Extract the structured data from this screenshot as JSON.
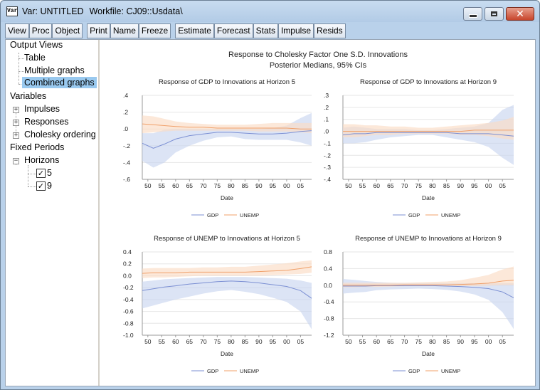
{
  "window": {
    "icon_text": "Var",
    "title": "Var: UNTITLED",
    "workfile": "Workfile: CJ09::Usdata\\"
  },
  "toolbar": {
    "group1": [
      "View",
      "Proc",
      "Object"
    ],
    "group2": [
      "Print",
      "Name",
      "Freeze"
    ],
    "group3": [
      "Estimate",
      "Forecast",
      "Stats",
      "Impulse",
      "Resids"
    ]
  },
  "tree": {
    "output_views": "Output Views",
    "table": "Table",
    "multiple_graphs": "Multiple graphs",
    "combined_graphs": "Combined graphs",
    "variables": "Variables",
    "impulses": "Impulses",
    "responses": "Responses",
    "cholesky": "Cholesky ordering",
    "fixed_periods": "Fixed Periods",
    "horizons": "Horizons",
    "h5": "5",
    "h9": "9"
  },
  "graph": {
    "title": "Response to Cholesky Factor One S.D. Innovations",
    "subtitle": "Posterior Medians, 95% CIs"
  },
  "colors": {
    "gdp": "#7b8fd3",
    "unemp": "#f0a06a",
    "gdp_band": "#c9d5ef",
    "unemp_band": "#fadcc4"
  },
  "chart_data": [
    {
      "type": "line",
      "title": "Response of GDP to Innovations at Horizon 5",
      "xlabel": "Date",
      "x_ticks": [
        "50",
        "55",
        "60",
        "65",
        "70",
        "75",
        "80",
        "85",
        "90",
        "95",
        "00",
        "05"
      ],
      "x_range": [
        1948,
        2009
      ],
      "ylim": [
        -0.6,
        0.4
      ],
      "y_ticks": [
        ".4",
        ".2",
        ".0",
        "-.2",
        "-.4",
        "-.6"
      ],
      "y_tick_values": [
        0.4,
        0.2,
        0.0,
        -0.2,
        -0.4,
        -0.6
      ],
      "legend": [
        "GDP",
        "UNEMP"
      ],
      "series": [
        {
          "name": "GDP",
          "x": [
            1948,
            1952,
            1956,
            1960,
            1965,
            1970,
            1975,
            1980,
            1985,
            1990,
            1995,
            2000,
            2005,
            2009
          ],
          "median": [
            -0.17,
            -0.23,
            -0.18,
            -0.12,
            -0.08,
            -0.06,
            -0.04,
            -0.04,
            -0.05,
            -0.06,
            -0.06,
            -0.05,
            -0.03,
            -0.02
          ],
          "lower": [
            -0.38,
            -0.46,
            -0.4,
            -0.28,
            -0.2,
            -0.14,
            -0.1,
            -0.09,
            -0.12,
            -0.13,
            -0.13,
            -0.13,
            -0.16,
            -0.2
          ],
          "upper": [
            -0.05,
            -0.05,
            -0.01,
            0.0,
            0.0,
            0.0,
            0.0,
            0.0,
            0.0,
            0.0,
            0.01,
            0.04,
            0.13,
            0.19
          ]
        },
        {
          "name": "UNEMP",
          "x": [
            1948,
            1952,
            1956,
            1960,
            1965,
            1970,
            1975,
            1980,
            1985,
            1990,
            1995,
            2000,
            2005,
            2009
          ],
          "median": [
            0.06,
            0.05,
            0.04,
            0.03,
            0.02,
            0.02,
            0.01,
            0.01,
            0.01,
            0.01,
            0.01,
            0.01,
            0.0,
            0.0
          ],
          "lower": [
            -0.05,
            -0.04,
            -0.03,
            -0.02,
            -0.02,
            -0.02,
            -0.02,
            -0.02,
            -0.02,
            -0.03,
            -0.03,
            -0.03,
            -0.04,
            -0.05
          ],
          "upper": [
            0.16,
            0.15,
            0.12,
            0.09,
            0.07,
            0.06,
            0.05,
            0.05,
            0.05,
            0.06,
            0.07,
            0.07,
            0.07,
            0.07
          ]
        }
      ]
    },
    {
      "type": "line",
      "title": "Response of GDP to Innovations at Horizon 9",
      "xlabel": "Date",
      "x_ticks": [
        "50",
        "55",
        "60",
        "65",
        "70",
        "75",
        "80",
        "85",
        "90",
        "95",
        "00",
        "05"
      ],
      "x_range": [
        1948,
        2009
      ],
      "ylim": [
        -0.4,
        0.3
      ],
      "y_ticks": [
        ".3",
        ".2",
        ".1",
        ".0",
        "-.1",
        "-.2",
        "-.3",
        "-.4"
      ],
      "y_tick_values": [
        0.3,
        0.2,
        0.1,
        0.0,
        -0.1,
        -0.2,
        -0.3,
        -0.4
      ],
      "legend": [
        "GDP",
        "UNEMP"
      ],
      "series": [
        {
          "name": "GDP",
          "x": [
            1948,
            1952,
            1956,
            1960,
            1965,
            1970,
            1975,
            1980,
            1985,
            1990,
            1995,
            2000,
            2005,
            2009
          ],
          "median": [
            -0.03,
            -0.02,
            -0.02,
            -0.01,
            -0.01,
            -0.01,
            -0.01,
            -0.01,
            -0.01,
            -0.02,
            -0.02,
            -0.02,
            -0.03,
            -0.04
          ],
          "lower": [
            -0.1,
            -0.1,
            -0.09,
            -0.07,
            -0.05,
            -0.04,
            -0.03,
            -0.03,
            -0.05,
            -0.07,
            -0.09,
            -0.13,
            -0.22,
            -0.28
          ],
          "upper": [
            0.03,
            0.04,
            0.03,
            0.02,
            0.02,
            0.02,
            0.01,
            0.01,
            0.02,
            0.03,
            0.04,
            0.07,
            0.18,
            0.22
          ]
        },
        {
          "name": "UNEMP",
          "x": [
            1948,
            1952,
            1956,
            1960,
            1965,
            1970,
            1975,
            1980,
            1985,
            1990,
            1995,
            2000,
            2005,
            2009
          ],
          "median": [
            0.0,
            0.0,
            0.0,
            0.0,
            0.0,
            0.0,
            0.0,
            0.0,
            0.0,
            0.0,
            0.01,
            0.01,
            0.01,
            0.01
          ],
          "lower": [
            -0.05,
            -0.05,
            -0.04,
            -0.03,
            -0.03,
            -0.02,
            -0.02,
            -0.02,
            -0.02,
            -0.03,
            -0.03,
            -0.04,
            -0.06,
            -0.07
          ],
          "upper": [
            0.06,
            0.06,
            0.05,
            0.05,
            0.04,
            0.04,
            0.03,
            0.03,
            0.04,
            0.05,
            0.06,
            0.07,
            0.09,
            0.12
          ]
        }
      ]
    },
    {
      "type": "line",
      "title": "Response of UNEMP to Innovations at Horizon 5",
      "xlabel": "Date",
      "x_ticks": [
        "50",
        "55",
        "60",
        "65",
        "70",
        "75",
        "80",
        "85",
        "90",
        "95",
        "00",
        "05"
      ],
      "x_range": [
        1948,
        2009
      ],
      "ylim": [
        -1.0,
        0.4
      ],
      "y_ticks": [
        "0.4",
        "0.2",
        "0.0",
        "-0.2",
        "-0.4",
        "-0.6",
        "-0.8",
        "-1.0"
      ],
      "y_tick_values": [
        0.4,
        0.2,
        0.0,
        -0.2,
        -0.4,
        -0.6,
        -0.8,
        -1.0
      ],
      "legend": [
        "GDP",
        "UNEMP"
      ],
      "series": [
        {
          "name": "GDP",
          "x": [
            1948,
            1952,
            1956,
            1960,
            1965,
            1970,
            1975,
            1980,
            1985,
            1990,
            1995,
            2000,
            2005,
            2009
          ],
          "median": [
            -0.25,
            -0.22,
            -0.19,
            -0.17,
            -0.14,
            -0.12,
            -0.1,
            -0.09,
            -0.1,
            -0.12,
            -0.15,
            -0.18,
            -0.25,
            -0.38
          ],
          "lower": [
            -0.55,
            -0.5,
            -0.45,
            -0.4,
            -0.35,
            -0.3,
            -0.26,
            -0.24,
            -0.27,
            -0.31,
            -0.37,
            -0.44,
            -0.6,
            -0.9
          ],
          "upper": [
            -0.1,
            -0.08,
            -0.06,
            -0.05,
            -0.04,
            -0.03,
            -0.02,
            -0.02,
            -0.02,
            -0.03,
            -0.04,
            -0.05,
            -0.08,
            -0.12
          ]
        },
        {
          "name": "UNEMP",
          "x": [
            1948,
            1952,
            1956,
            1960,
            1965,
            1970,
            1975,
            1980,
            1985,
            1990,
            1995,
            2000,
            2005,
            2009
          ],
          "median": [
            0.04,
            0.05,
            0.05,
            0.05,
            0.06,
            0.06,
            0.06,
            0.06,
            0.06,
            0.07,
            0.08,
            0.09,
            0.12,
            0.15
          ],
          "lower": [
            -0.04,
            -0.03,
            -0.03,
            -0.02,
            -0.01,
            0.0,
            0.0,
            0.0,
            0.0,
            0.0,
            0.01,
            0.02,
            0.03,
            0.05
          ],
          "upper": [
            0.12,
            0.13,
            0.13,
            0.13,
            0.13,
            0.14,
            0.14,
            0.15,
            0.15,
            0.17,
            0.19,
            0.21,
            0.24,
            0.26
          ]
        }
      ]
    },
    {
      "type": "line",
      "title": "Response of UNEMP to Innovations at Horizon 9",
      "xlabel": "Date",
      "x_ticks": [
        "50",
        "55",
        "60",
        "65",
        "70",
        "75",
        "80",
        "85",
        "90",
        "95",
        "00",
        "05"
      ],
      "x_range": [
        1948,
        2009
      ],
      "ylim": [
        -1.2,
        0.8
      ],
      "y_ticks": [
        "0.8",
        "0.4",
        "0.0",
        "-0.4",
        "-0.8",
        "-1.2"
      ],
      "y_tick_values": [
        0.8,
        0.4,
        0.0,
        -0.4,
        -0.8,
        -1.2
      ],
      "legend": [
        "GDP",
        "UNEMP"
      ],
      "series": [
        {
          "name": "GDP",
          "x": [
            1948,
            1952,
            1956,
            1960,
            1965,
            1970,
            1975,
            1980,
            1985,
            1990,
            1995,
            2000,
            2005,
            2009
          ],
          "median": [
            -0.02,
            -0.02,
            -0.02,
            -0.01,
            -0.01,
            -0.01,
            -0.01,
            -0.01,
            -0.02,
            -0.03,
            -0.05,
            -0.08,
            -0.16,
            -0.3
          ],
          "lower": [
            -0.2,
            -0.18,
            -0.16,
            -0.12,
            -0.1,
            -0.09,
            -0.08,
            -0.09,
            -0.11,
            -0.15,
            -0.22,
            -0.35,
            -0.65,
            -1.05
          ],
          "upper": [
            0.15,
            0.13,
            0.1,
            0.08,
            0.06,
            0.05,
            0.05,
            0.05,
            0.05,
            0.05,
            0.05,
            0.05,
            0.05,
            0.05
          ]
        },
        {
          "name": "UNEMP",
          "x": [
            1948,
            1952,
            1956,
            1960,
            1965,
            1970,
            1975,
            1980,
            1985,
            1990,
            1995,
            2000,
            2005,
            2009
          ],
          "median": [
            0.0,
            0.0,
            0.0,
            0.0,
            0.0,
            0.01,
            0.01,
            0.01,
            0.01,
            0.02,
            0.03,
            0.05,
            0.1,
            0.12
          ],
          "lower": [
            -0.05,
            -0.05,
            -0.04,
            -0.04,
            -0.03,
            -0.02,
            -0.02,
            -0.02,
            -0.02,
            -0.02,
            -0.02,
            -0.01,
            0.0,
            0.0
          ],
          "upper": [
            0.06,
            0.06,
            0.06,
            0.06,
            0.06,
            0.06,
            0.07,
            0.08,
            0.09,
            0.12,
            0.18,
            0.25,
            0.38,
            0.45
          ]
        }
      ]
    }
  ]
}
